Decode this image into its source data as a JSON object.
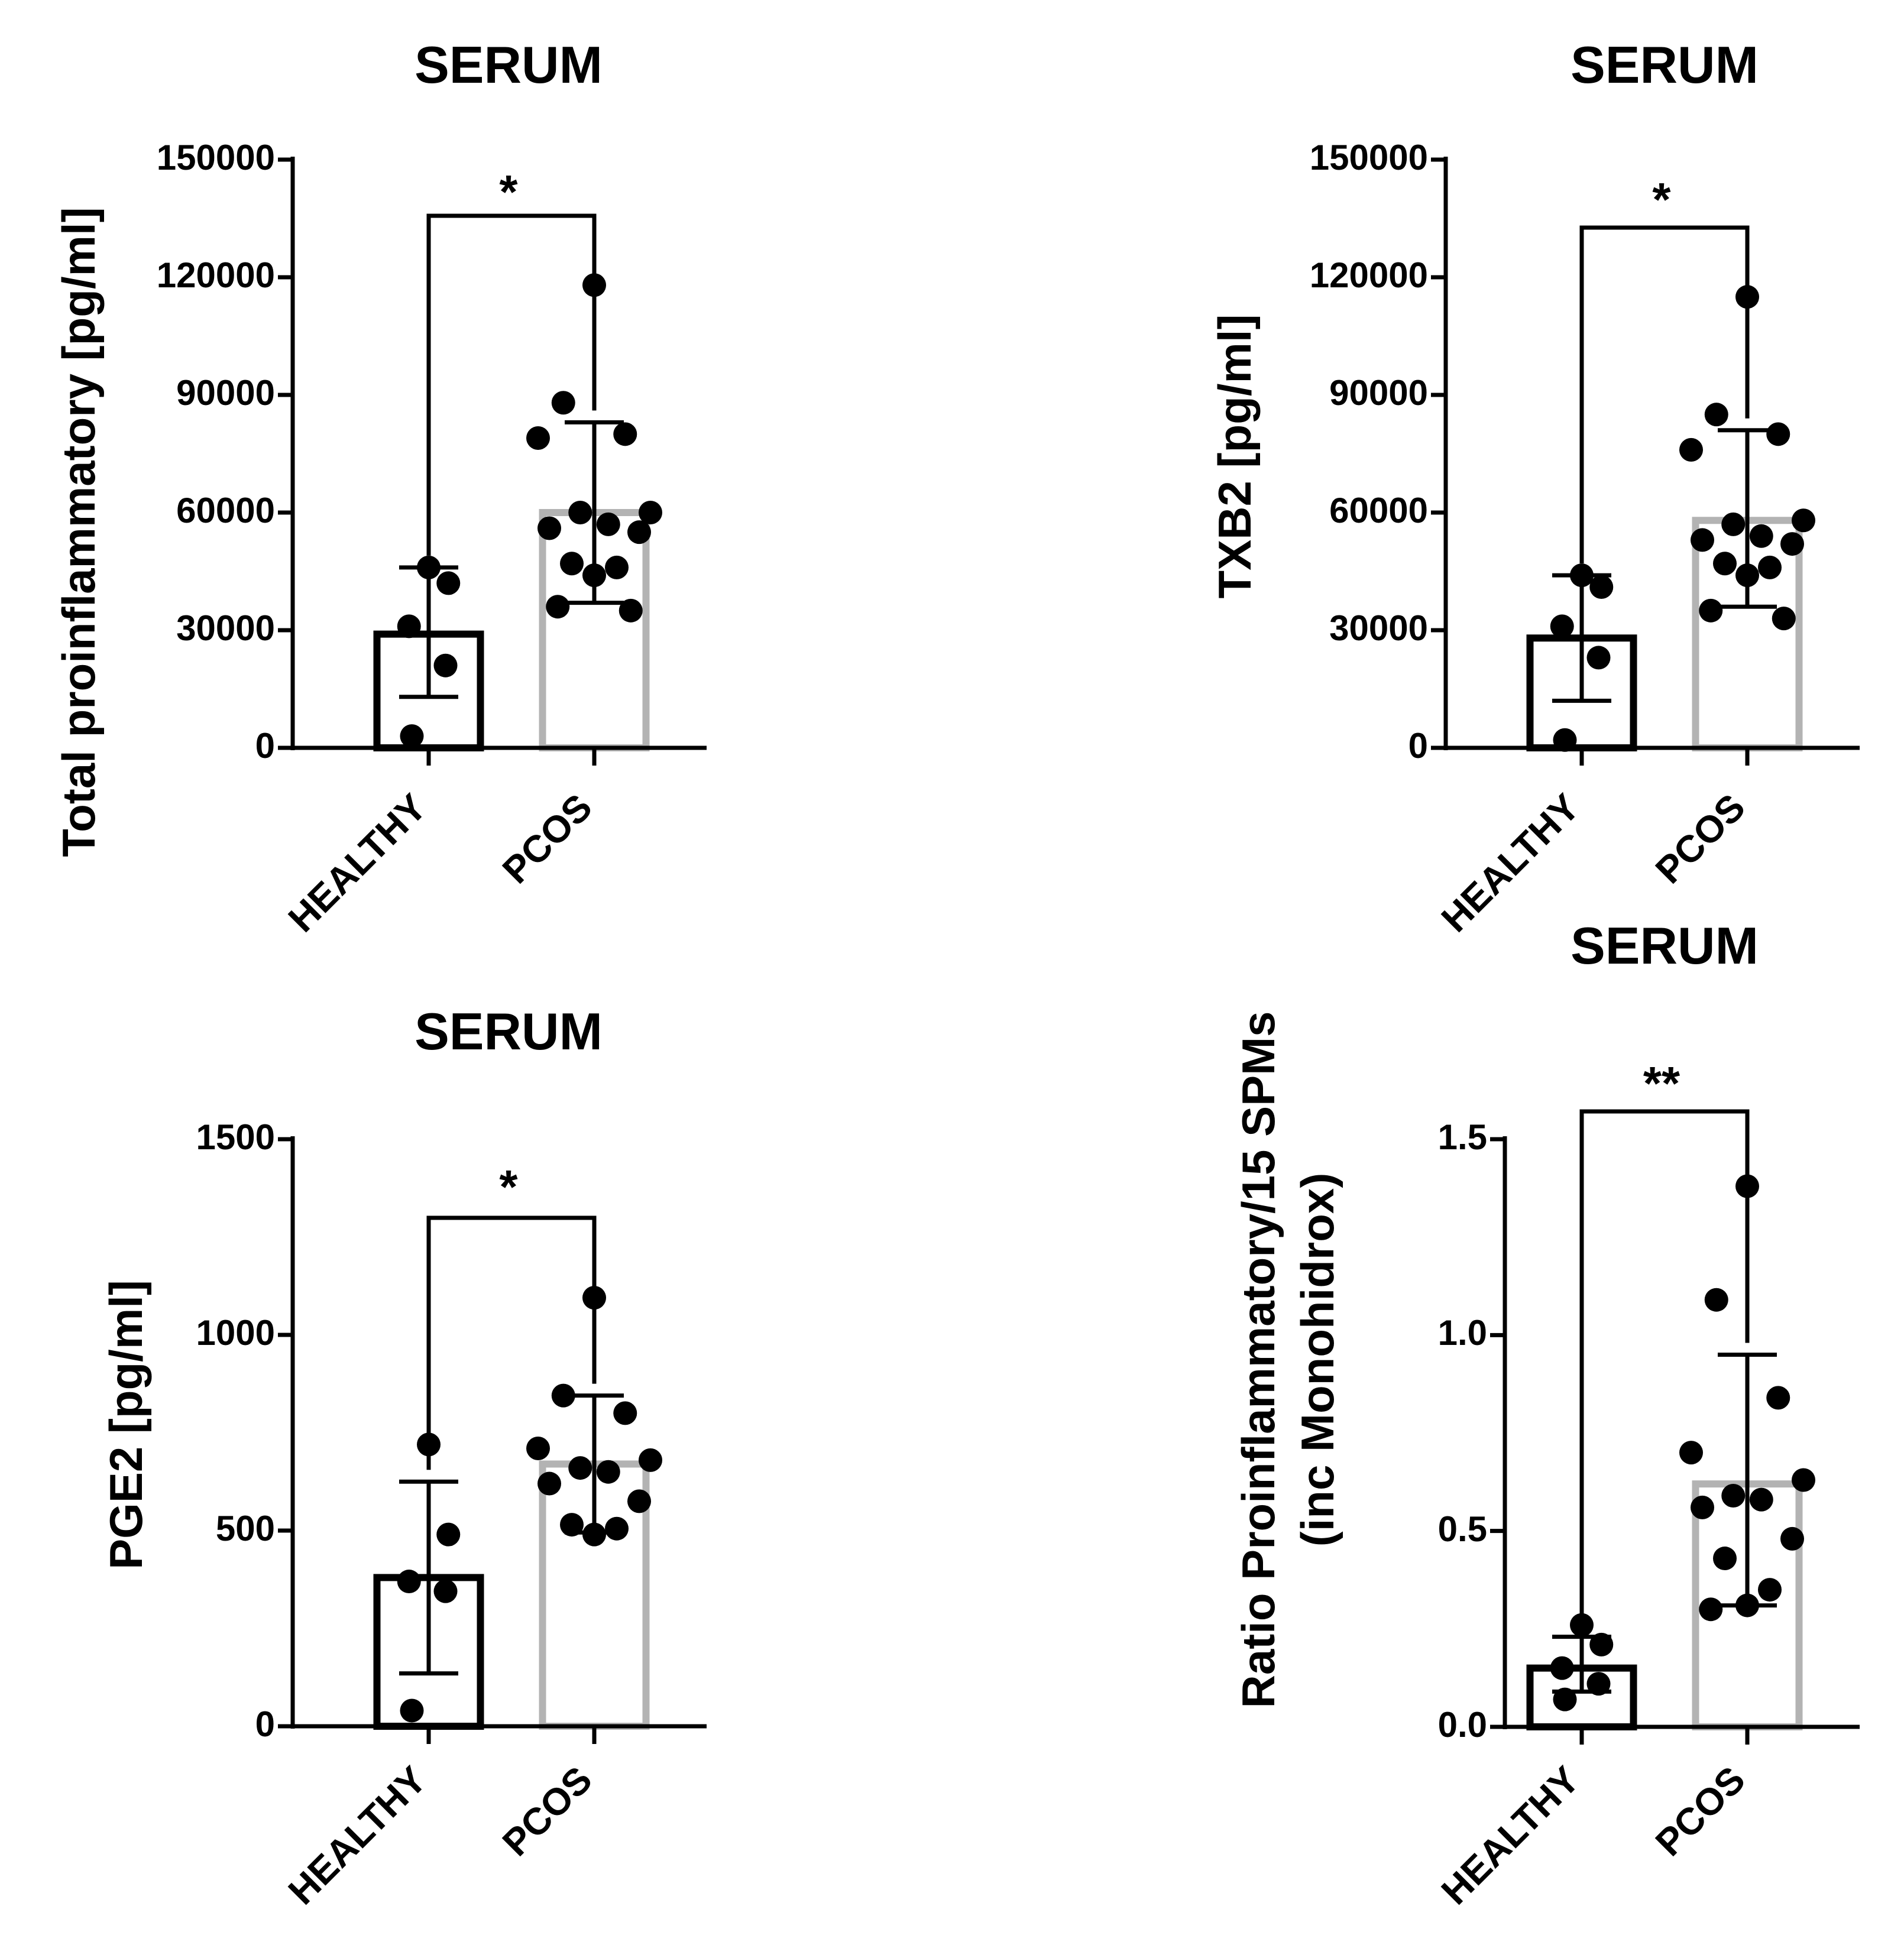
{
  "figure": {
    "colors": {
      "healthy_bar": "#000000",
      "pcos_bar": "#b3b3b3",
      "points": "#000000",
      "axis": "#000000"
    }
  },
  "chart_data": [
    {
      "type": "bar",
      "title": "SERUM",
      "ylabel": "Total proinflammatory [pg/ml]",
      "xlabel": "",
      "categories": [
        "HEALTHY",
        "PCOS"
      ],
      "values": [
        29000,
        60000
      ],
      "error_bars": [
        [
          13000,
          46000
        ],
        [
          37000,
          83000
        ]
      ],
      "ylim": [
        0,
        150000
      ],
      "yticks": [
        0,
        30000,
        60000,
        90000,
        120000,
        150000
      ],
      "ytick_labels": [
        "0",
        "30000",
        "60000",
        "90000",
        "120000",
        "150000"
      ],
      "points": [
        {
          "group": "HEALTHY",
          "values": [
            46000,
            42000,
            31000,
            21000,
            3000
          ]
        },
        {
          "group": "PCOS",
          "values": [
            118000,
            88000,
            80000,
            79000,
            60000,
            60000,
            57000,
            56000,
            55000,
            47000,
            46000,
            44000,
            36000,
            35000
          ]
        }
      ],
      "significance": "*",
      "grid": false
    },
    {
      "type": "bar",
      "title": "SERUM",
      "ylabel": "TXB2 [pg/ml]",
      "xlabel": "",
      "categories": [
        "HEALTHY",
        "PCOS"
      ],
      "values": [
        28000,
        58000
      ],
      "error_bars": [
        [
          12000,
          44000
        ],
        [
          36000,
          81000
        ]
      ],
      "ylim": [
        0,
        150000
      ],
      "yticks": [
        0,
        30000,
        60000,
        90000,
        120000,
        150000
      ],
      "ytick_labels": [
        "0",
        "30000",
        "60000",
        "90000",
        "120000",
        "150000"
      ],
      "points": [
        {
          "group": "HEALTHY",
          "values": [
            44000,
            41000,
            31000,
            23000,
            2000
          ]
        },
        {
          "group": "PCOS",
          "values": [
            115000,
            85000,
            80000,
            76000,
            58000,
            57000,
            54000,
            53000,
            52000,
            47000,
            46000,
            44000,
            35000,
            33000
          ]
        }
      ],
      "significance": "*",
      "grid": false
    },
    {
      "type": "bar",
      "title": "SERUM",
      "ylabel": "PGE2 [pg/ml]",
      "xlabel": "",
      "categories": [
        "HEALTHY",
        "PCOS"
      ],
      "values": [
        380,
        670
      ],
      "error_bars": [
        [
          135,
          625
        ],
        [
          495,
          845
        ]
      ],
      "ylim": [
        0,
        1500
      ],
      "yticks": [
        0,
        500,
        1000,
        1500
      ],
      "ytick_labels": [
        "0",
        "500",
        "1000",
        "1500"
      ],
      "points": [
        {
          "group": "HEALTHY",
          "values": [
            720,
            490,
            370,
            345,
            40
          ]
        },
        {
          "group": "PCOS",
          "values": [
            1095,
            845,
            800,
            710,
            680,
            660,
            650,
            620,
            575,
            515,
            505,
            490
          ]
        }
      ],
      "significance": "*",
      "grid": false
    },
    {
      "type": "bar",
      "title": "SERUM",
      "ylabel": "Ratio Proinflammatory/15 SPMs",
      "ylabel2": "(inc Monohidrox)",
      "xlabel": "",
      "categories": [
        "HEALTHY",
        "PCOS"
      ],
      "values": [
        0.15,
        0.62
      ],
      "error_bars": [
        [
          0.09,
          0.23
        ],
        [
          0.31,
          0.95
        ]
      ],
      "ylim": [
        0.0,
        1.5
      ],
      "yticks": [
        0.0,
        0.5,
        1.0,
        1.5
      ],
      "ytick_labels": [
        "0.0",
        "0.5",
        "1.0",
        "1.5"
      ],
      "points": [
        {
          "group": "HEALTHY",
          "values": [
            0.26,
            0.21,
            0.15,
            0.11,
            0.07
          ]
        },
        {
          "group": "PCOS",
          "values": [
            1.38,
            1.09,
            0.84,
            0.7,
            0.63,
            0.59,
            0.58,
            0.56,
            0.48,
            0.43,
            0.35,
            0.31,
            0.3
          ]
        }
      ],
      "significance": "**",
      "grid": false
    }
  ]
}
